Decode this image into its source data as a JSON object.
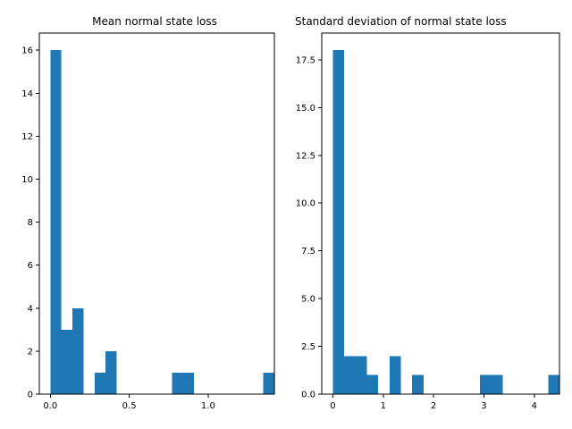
{
  "chart_data": [
    {
      "type": "bar",
      "title": "Mean normal state loss",
      "xlabel": "",
      "ylabel": "",
      "xlim": [
        -0.07,
        1.42
      ],
      "ylim": [
        0,
        16.8
      ],
      "bin_width": 0.07,
      "bins": [
        {
          "x": 0.0,
          "count": 16
        },
        {
          "x": 0.07,
          "count": 3
        },
        {
          "x": 0.14,
          "count": 4
        },
        {
          "x": 0.28,
          "count": 1
        },
        {
          "x": 0.35,
          "count": 2
        },
        {
          "x": 0.77,
          "count": 1
        },
        {
          "x": 0.84,
          "count": 1
        },
        {
          "x": 1.35,
          "count": 1
        }
      ],
      "xticks": [
        {
          "value": 0.0,
          "label": "0.0"
        },
        {
          "value": 0.5,
          "label": "0.5"
        },
        {
          "value": 1.0,
          "label": "1.0"
        }
      ],
      "yticks": [
        {
          "value": 0,
          "label": "0"
        },
        {
          "value": 2,
          "label": "2"
        },
        {
          "value": 4,
          "label": "4"
        },
        {
          "value": 6,
          "label": "6"
        },
        {
          "value": 8,
          "label": "8"
        },
        {
          "value": 10,
          "label": "10"
        },
        {
          "value": 12,
          "label": "12"
        },
        {
          "value": 14,
          "label": "14"
        },
        {
          "value": 16,
          "label": "16"
        }
      ],
      "color": "#1f77b4",
      "grid": false
    },
    {
      "type": "bar",
      "title": "Standard deviation of normal state loss",
      "xlabel": "",
      "ylabel": "",
      "xlim": [
        -0.22,
        4.5
      ],
      "ylim": [
        0,
        18.9
      ],
      "bin_width": 0.225,
      "bins": [
        {
          "x": 0.0,
          "count": 18
        },
        {
          "x": 0.225,
          "count": 2
        },
        {
          "x": 0.45,
          "count": 2
        },
        {
          "x": 0.675,
          "count": 1
        },
        {
          "x": 1.125,
          "count": 2
        },
        {
          "x": 1.575,
          "count": 1
        },
        {
          "x": 2.925,
          "count": 1
        },
        {
          "x": 3.15,
          "count": 1
        },
        {
          "x": 4.275,
          "count": 1
        }
      ],
      "xticks": [
        {
          "value": 0,
          "label": "0"
        },
        {
          "value": 1,
          "label": "1"
        },
        {
          "value": 2,
          "label": "2"
        },
        {
          "value": 3,
          "label": "3"
        },
        {
          "value": 4,
          "label": "4"
        }
      ],
      "yticks": [
        {
          "value": 0.0,
          "label": "0.0"
        },
        {
          "value": 2.5,
          "label": "2.5"
        },
        {
          "value": 5.0,
          "label": "5.0"
        },
        {
          "value": 7.5,
          "label": "7.5"
        },
        {
          "value": 10.0,
          "label": "10.0"
        },
        {
          "value": 12.5,
          "label": "12.5"
        },
        {
          "value": 15.0,
          "label": "15.0"
        },
        {
          "value": 17.5,
          "label": "17.5"
        }
      ],
      "color": "#1f77b4",
      "grid": false
    }
  ]
}
